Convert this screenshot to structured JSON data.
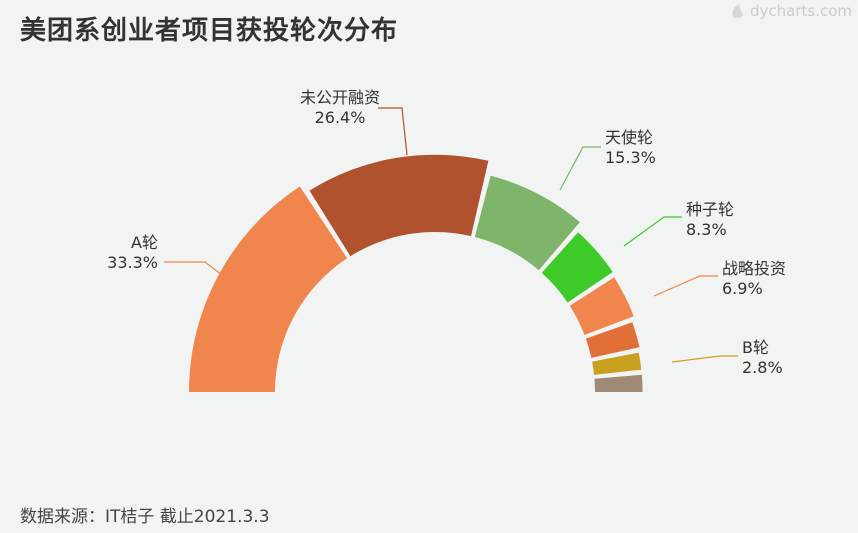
{
  "title": "美团系创业者项目获投轮次分布",
  "watermark": "dycharts.com",
  "source": "数据来源：IT桔子 截止2021.3.3",
  "chart_data": {
    "type": "pie",
    "variant": "half-donut",
    "title": "美团系创业者项目获投轮次分布",
    "slices": [
      {
        "label": "A轮",
        "value": 33.3,
        "value_text": "33.3%",
        "color": "#f0854d",
        "show_label": true
      },
      {
        "label": "未公开融资",
        "value": 26.4,
        "value_text": "26.4%",
        "color": "#b0522e",
        "show_label": true
      },
      {
        "label": "天使轮",
        "value": 15.3,
        "value_text": "15.3%",
        "color": "#7fb56a",
        "show_label": true
      },
      {
        "label": "种子轮",
        "value": 8.3,
        "value_text": "8.3%",
        "color": "#3ecb2a",
        "show_label": true
      },
      {
        "label": "战略投资",
        "value": 6.9,
        "value_text": "6.9%",
        "color": "#f0854d",
        "show_label": true
      },
      {
        "label": "",
        "value": 4.2,
        "value_text": "",
        "color": "#e07038",
        "show_label": false
      },
      {
        "label": "B轮",
        "value": 2.8,
        "value_text": "2.8%",
        "color": "#c9a01e",
        "show_label": true
      },
      {
        "label": "",
        "value": 2.8,
        "value_text": "",
        "color": "#a08a75",
        "show_label": false
      }
    ]
  }
}
